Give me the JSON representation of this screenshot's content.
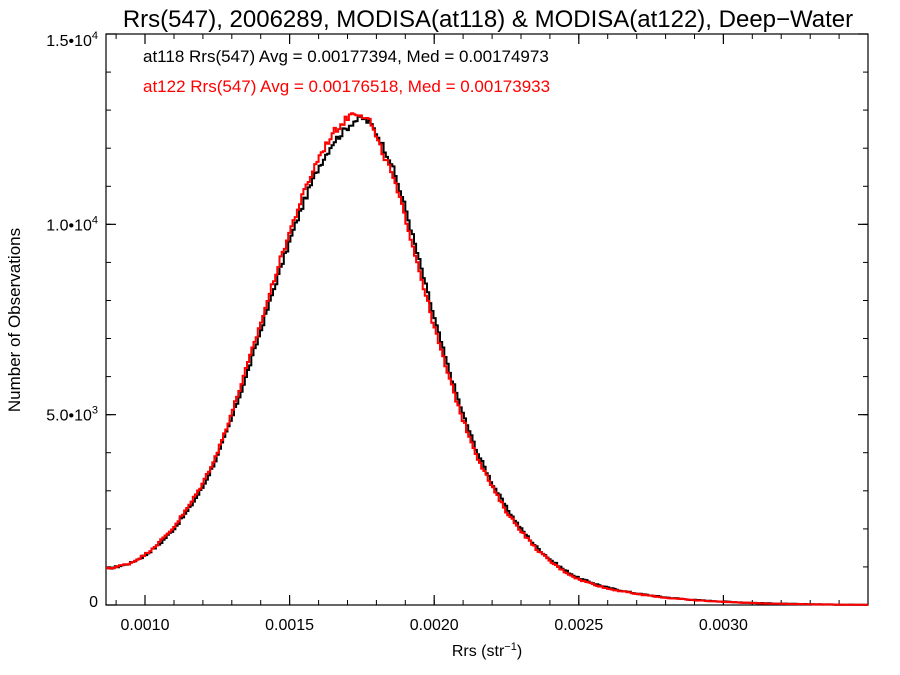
{
  "chart_data": {
    "type": "line",
    "title": "Rrs(547), 2006289, MODISA(at118) & MODISA(at122), Deep−Water",
    "xlabel_base": "Rrs (str",
    "xlabel_exp": "−1",
    "xlabel_close": ")",
    "ylabel": "Number of Observations",
    "xlim": [
      0.000865,
      0.0035
    ],
    "ylim": [
      0,
      15000
    ],
    "x_ticks": [
      {
        "value": 0.001,
        "label": "0.0010"
      },
      {
        "value": 0.0015,
        "label": "0.0015"
      },
      {
        "value": 0.002,
        "label": "0.0020"
      },
      {
        "value": 0.0025,
        "label": "0.0025"
      },
      {
        "value": 0.003,
        "label": "0.0030"
      }
    ],
    "x_minor_step": 0.0001,
    "y_ticks": [
      {
        "value": 0,
        "mant": "0",
        "exp": ""
      },
      {
        "value": 5000,
        "mant": "5.0•10",
        "exp": "3"
      },
      {
        "value": 10000,
        "mant": "1.0•10",
        "exp": "4"
      },
      {
        "value": 15000,
        "mant": "1.5•10",
        "exp": "4"
      }
    ],
    "y_minor_step": 1000,
    "annotations": [
      {
        "text": "at118 Rrs(547) Avg = 0.00177394, Med = 0.00174973",
        "color": "#000000"
      },
      {
        "text": "at122 Rrs(547) Avg = 0.00176518, Med = 0.00173933",
        "color": "#ff0000"
      }
    ],
    "series": [
      {
        "color": "#000000",
        "x": [
          0.000865,
          0.0009,
          0.00095,
          0.001,
          0.00105,
          0.0011,
          0.00115,
          0.0012,
          0.00125,
          0.0013,
          0.00135,
          0.0014,
          0.00145,
          0.0015,
          0.00155,
          0.0016,
          0.00165,
          0.0017,
          0.00172,
          0.00175,
          0.00178,
          0.0018,
          0.00185,
          0.0019,
          0.00195,
          0.002,
          0.00205,
          0.0021,
          0.00215,
          0.0022,
          0.00225,
          0.0023,
          0.00235,
          0.0024,
          0.00245,
          0.0025,
          0.0026,
          0.0027,
          0.0028,
          0.0029,
          0.003,
          0.0031,
          0.0032,
          0.0033,
          0.0034,
          0.0035
        ],
        "y": [
          950,
          1000,
          1100,
          1300,
          1600,
          2000,
          2500,
          3100,
          3900,
          4900,
          6000,
          7200,
          8400,
          9550,
          10600,
          11500,
          12150,
          12550,
          12700,
          12800,
          12650,
          12400,
          11650,
          10450,
          9000,
          7550,
          6200,
          5000,
          4000,
          3200,
          2550,
          2000,
          1550,
          1200,
          920,
          700,
          450,
          300,
          200,
          130,
          90,
          55,
          35,
          20,
          10,
          5
        ]
      },
      {
        "color": "#ff0000",
        "x": [
          0.000865,
          0.0009,
          0.00095,
          0.001,
          0.00105,
          0.0011,
          0.00115,
          0.0012,
          0.00125,
          0.0013,
          0.00135,
          0.0014,
          0.00145,
          0.0015,
          0.00155,
          0.0016,
          0.00165,
          0.0017,
          0.00172,
          0.00175,
          0.00178,
          0.0018,
          0.00185,
          0.0019,
          0.00195,
          0.002,
          0.00205,
          0.0021,
          0.00215,
          0.0022,
          0.00225,
          0.0023,
          0.00235,
          0.0024,
          0.00245,
          0.0025,
          0.0026,
          0.0027,
          0.0028,
          0.0029,
          0.003,
          0.0031,
          0.0032,
          0.0033,
          0.0034,
          0.0035
        ],
        "y": [
          950,
          1000,
          1100,
          1320,
          1650,
          2050,
          2580,
          3200,
          4000,
          5050,
          6200,
          7400,
          8650,
          9800,
          10850,
          11750,
          12400,
          12800,
          12950,
          12900,
          12700,
          12250,
          11400,
          10200,
          8750,
          7300,
          6000,
          4850,
          3880,
          3100,
          2450,
          1950,
          1500,
          1150,
          880,
          670,
          430,
          290,
          190,
          125,
          85,
          50,
          32,
          18,
          9,
          4
        ]
      }
    ]
  }
}
